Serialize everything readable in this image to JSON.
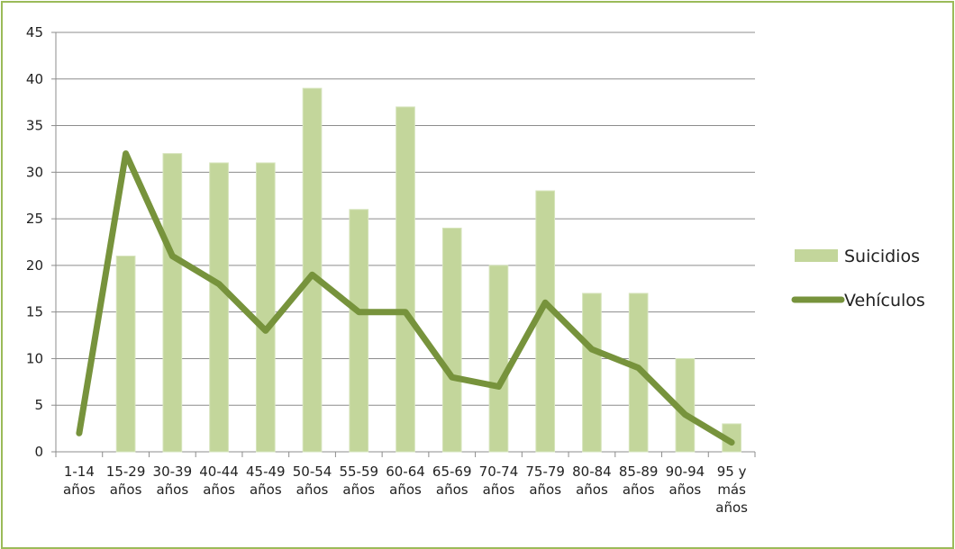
{
  "chart_data": {
    "type": "bar",
    "categories": [
      [
        "1-14",
        "años"
      ],
      [
        "15-29",
        "años"
      ],
      [
        "30-39",
        "años"
      ],
      [
        "40-44",
        "años"
      ],
      [
        "45-49",
        "años"
      ],
      [
        "50-54",
        "años"
      ],
      [
        "55-59",
        "años"
      ],
      [
        "60-64",
        "años"
      ],
      [
        "65-69",
        "años"
      ],
      [
        "70-74",
        "años"
      ],
      [
        "75-79",
        "años"
      ],
      [
        "80-84",
        "años"
      ],
      [
        "85-89",
        "años"
      ],
      [
        "90-94",
        "años"
      ],
      [
        "95 y",
        "más",
        "años"
      ]
    ],
    "series": [
      {
        "name": "Suicidios",
        "kind": "bar",
        "color": "#c3d69b",
        "values": [
          0,
          21,
          32,
          31,
          31,
          39,
          26,
          37,
          24,
          20,
          28,
          17,
          17,
          10,
          3
        ]
      },
      {
        "name": "Vehículos",
        "kind": "line",
        "color": "#77933c",
        "values": [
          2,
          32,
          21,
          18,
          13,
          19,
          15,
          15,
          8,
          7,
          16,
          11,
          9,
          4,
          1
        ]
      }
    ],
    "ylim": [
      0,
      45
    ],
    "yticks": [
      0,
      5,
      10,
      15,
      20,
      25,
      30,
      35,
      40,
      45
    ],
    "grid": true,
    "legend": "right",
    "title": "",
    "xlabel": "",
    "ylabel": ""
  }
}
